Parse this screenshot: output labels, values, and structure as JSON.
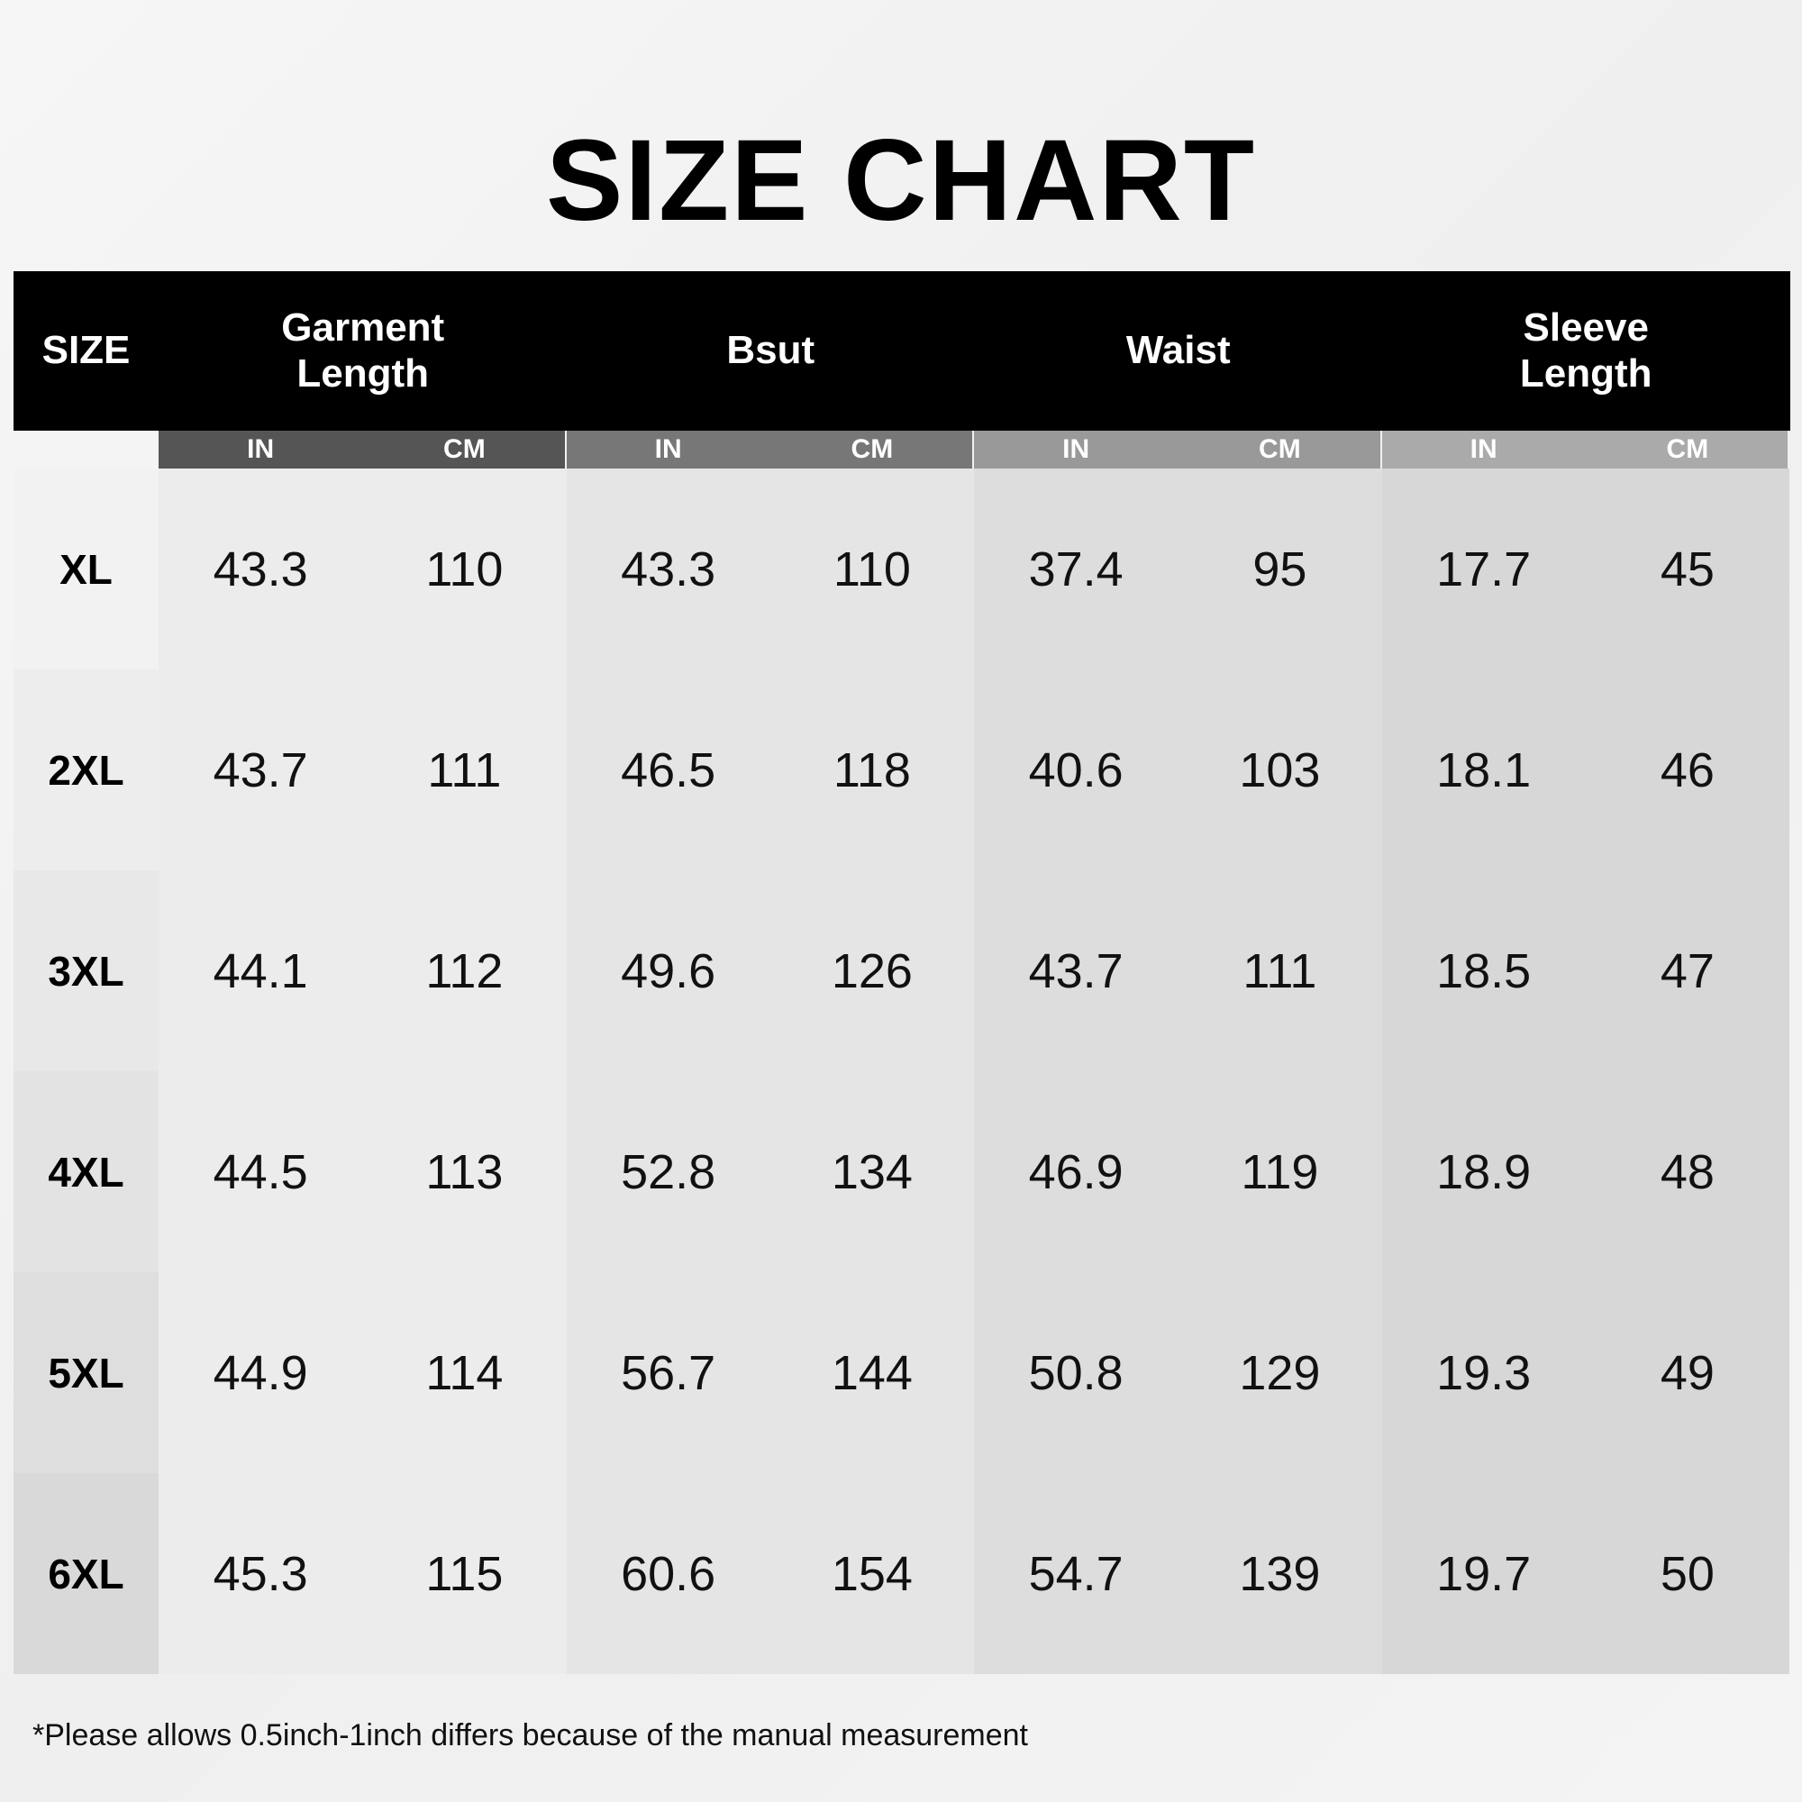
{
  "header": {
    "title": "SIZE CHART"
  },
  "table": {
    "columns": [
      "SIZE",
      "Garment Length",
      "Bsut",
      "Waist",
      "Sleeve Length"
    ],
    "units": [
      "IN",
      "CM"
    ],
    "rows": [
      {
        "size": "XL",
        "values": [
          "43.3",
          "110",
          "43.3",
          "110",
          "37.4",
          "95",
          "17.7",
          "45"
        ]
      },
      {
        "size": "2XL",
        "values": [
          "43.7",
          "111",
          "46.5",
          "118",
          "40.6",
          "103",
          "18.1",
          "46"
        ]
      },
      {
        "size": "3XL",
        "values": [
          "44.1",
          "112",
          "49.6",
          "126",
          "43.7",
          "111",
          "18.5",
          "47"
        ]
      },
      {
        "size": "4XL",
        "values": [
          "44.5",
          "113",
          "52.8",
          "134",
          "46.9",
          "119",
          "18.9",
          "48"
        ]
      },
      {
        "size": "5XL",
        "values": [
          "44.9",
          "114",
          "56.7",
          "144",
          "50.8",
          "129",
          "19.3",
          "49"
        ]
      },
      {
        "size": "6XL",
        "values": [
          "45.3",
          "115",
          "60.6",
          "154",
          "54.7",
          "139",
          "19.7",
          "50"
        ]
      }
    ]
  },
  "footnote": "*Please allows 0.5inch-1inch differs because of the manual measurement"
}
